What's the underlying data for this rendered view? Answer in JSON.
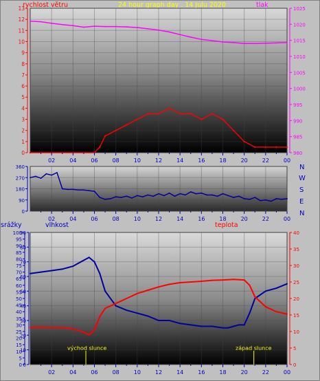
{
  "header": {
    "left_label": "rychlost větru",
    "title": "24 hour graph day . 14 Julu 2020",
    "right_label": "tlak"
  },
  "compass": [
    "N",
    "W",
    "S",
    "E",
    "N"
  ],
  "bottom_labels": {
    "left1": "srážky",
    "left2": "vlhkost",
    "right": "teplota",
    "sunrise": "východ slunce",
    "sunset": "západ slunce"
  },
  "colors": {
    "frame_bg": "#c0c0c0",
    "panel_bg": "#8e8e8e",
    "header_text": "#ffff00",
    "wind": "#ff0000",
    "gust": "#ff0000",
    "pressure": "#ff00ff",
    "direction": "#0000a0",
    "humidity": "#0000a0",
    "temperature": "#ff0000",
    "axis_blue": "#0000c0",
    "axis_red": "#ff0000"
  },
  "chart_data": [
    {
      "type": "line",
      "name": "wind speed and pressure",
      "x_ticks": [
        "02",
        "04",
        "06",
        "08",
        "10",
        "12",
        "14",
        "16",
        "18",
        "20",
        "22",
        "00"
      ],
      "x_range_hours": [
        0,
        24
      ],
      "y_left_ticks": [
        "0",
        "1",
        "2",
        "3",
        "4",
        "5",
        "6",
        "7",
        "8",
        "9",
        "10",
        "11",
        "12",
        "13"
      ],
      "ylim_left": [
        0,
        13
      ],
      "y_right_ticks": [
        "980",
        "985",
        "990",
        "995",
        "1000",
        "1005",
        "1010",
        "1015",
        "1020",
        "1025"
      ],
      "ylim_right": [
        980,
        1025
      ],
      "series": [
        {
          "name": "rychlost větru",
          "axis": "left",
          "x": [
            0,
            6,
            6.5,
            7,
            8,
            9,
            10,
            11,
            12,
            13,
            14,
            15,
            16,
            17,
            18,
            19,
            20,
            21,
            22,
            23,
            24
          ],
          "values": [
            0,
            0,
            0.5,
            1.5,
            2.0,
            2.5,
            3.0,
            3.5,
            3.5,
            4.0,
            3.5,
            3.5,
            3.0,
            3.5,
            3.0,
            2.0,
            1.0,
            0.5,
            0.5,
            0.5,
            0.5
          ]
        },
        {
          "name": "tlak",
          "axis": "right",
          "x": [
            0,
            1,
            2,
            3,
            4,
            5,
            6,
            7,
            8,
            9,
            10,
            11,
            12,
            13,
            14,
            15,
            16,
            17,
            18,
            19,
            20,
            21,
            22,
            23,
            24
          ],
          "values": [
            1021.0,
            1020.8,
            1020.3,
            1019.9,
            1019.6,
            1019.1,
            1019.4,
            1019.3,
            1019.3,
            1019.2,
            1019.0,
            1018.6,
            1018.2,
            1017.6,
            1016.8,
            1016.0,
            1015.3,
            1014.9,
            1014.5,
            1014.3,
            1014.0,
            1014.0,
            1014.1,
            1014.2,
            1014.3
          ]
        }
      ]
    },
    {
      "type": "line",
      "name": "wind direction",
      "x_ticks": [
        "02",
        "04",
        "06",
        "08",
        "10",
        "12",
        "14",
        "16",
        "18",
        "20",
        "22",
        "00"
      ],
      "x_range_hours": [
        0,
        24
      ],
      "y_ticks": [
        "0",
        "90",
        "180",
        "270",
        "360"
      ],
      "ylim": [
        0,
        360
      ],
      "series": [
        {
          "name": "směr větru",
          "x": [
            0,
            0.5,
            1,
            1.5,
            2,
            2.5,
            3,
            3.5,
            4,
            4.5,
            5,
            5.5,
            6,
            6.5,
            7,
            7.5,
            8,
            8.5,
            9,
            9.5,
            10,
            10.5,
            11,
            11.5,
            12,
            12.5,
            13,
            13.5,
            14,
            14.5,
            15,
            15.5,
            16,
            16.5,
            17,
            17.5,
            18,
            18.5,
            19,
            19.5,
            20,
            20.5,
            21,
            21.5,
            22,
            22.5,
            23,
            23.5,
            24
          ],
          "values": [
            270,
            280,
            265,
            300,
            290,
            310,
            180,
            175,
            175,
            170,
            170,
            165,
            160,
            110,
            95,
            100,
            115,
            110,
            120,
            105,
            125,
            115,
            130,
            120,
            140,
            125,
            145,
            120,
            140,
            130,
            155,
            140,
            145,
            130,
            130,
            120,
            140,
            125,
            110,
            120,
            100,
            95,
            110,
            85,
            90,
            80,
            100,
            95,
            100
          ]
        }
      ]
    },
    {
      "type": "line",
      "name": "humidity and temperature",
      "x_ticks": [
        "02",
        "04",
        "06",
        "08",
        "10",
        "12",
        "14",
        "16",
        "18",
        "20",
        "22",
        "00"
      ],
      "x_range_hours": [
        0,
        24
      ],
      "y_left_ticks": [
        "0",
        "5",
        "10",
        "15",
        "20",
        "25",
        "30",
        "35",
        "40",
        "45",
        "50",
        "55",
        "60",
        "65",
        "70",
        "75",
        "80",
        "85",
        "90",
        "95",
        "100"
      ],
      "ylim_left": [
        0,
        100
      ],
      "y_mid_ticks": [
        "0",
        "10",
        "20",
        "30",
        "40",
        "50",
        "60",
        "70",
        "80",
        "90"
      ],
      "ylim_mid": [
        0,
        90
      ],
      "y_right_ticks": [
        "0",
        "5",
        "10",
        "15",
        "20",
        "25",
        "30",
        "35",
        "40"
      ],
      "ylim_right": [
        0,
        40
      ],
      "sunrise_hour": 5.2,
      "sunset_hour": 20.9,
      "series": [
        {
          "name": "vlhkost",
          "axis": "mid",
          "x": [
            0,
            1,
            2,
            3,
            3.5,
            4,
            4.5,
            5,
            5.5,
            6,
            6.5,
            7,
            8,
            9,
            10,
            11,
            12,
            13,
            14,
            15,
            16,
            17,
            18,
            18.5,
            19,
            19.5,
            20,
            20.5,
            21,
            22,
            23,
            24
          ],
          "values": [
            62,
            63,
            64,
            65,
            66,
            67,
            69,
            71,
            73,
            70,
            62,
            50,
            40,
            37,
            35,
            33,
            30,
            30,
            28,
            27,
            26,
            26,
            25,
            25,
            26,
            27,
            27,
            35,
            45,
            50,
            52,
            55
          ]
        },
        {
          "name": "teplota",
          "axis": "right",
          "x": [
            0,
            1,
            2,
            3,
            4,
            5,
            5.5,
            6,
            6.5,
            7,
            8,
            9,
            10,
            11,
            12,
            13,
            14,
            15,
            16,
            17,
            18,
            19,
            20,
            20.5,
            21,
            22,
            23,
            24
          ],
          "values": [
            11.2,
            11.3,
            11.2,
            11.2,
            10.8,
            9.8,
            9.0,
            10.5,
            14.5,
            17.0,
            18.5,
            20.0,
            21.5,
            22.5,
            23.5,
            24.3,
            24.8,
            25.0,
            25.2,
            25.5,
            25.6,
            25.8,
            25.6,
            24.0,
            20.5,
            17.5,
            16.0,
            15.3
          ]
        }
      ]
    }
  ]
}
